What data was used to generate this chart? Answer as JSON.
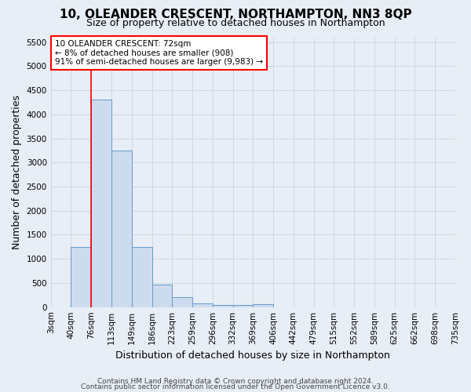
{
  "title": "10, OLEANDER CRESCENT, NORTHAMPTON, NN3 8QP",
  "subtitle": "Size of property relative to detached houses in Northampton",
  "xlabel": "Distribution of detached houses by size in Northampton",
  "ylabel": "Number of detached properties",
  "footer1": "Contains HM Land Registry data © Crown copyright and database right 2024.",
  "footer2": "Contains public sector information licensed under the Open Government Licence v3.0.",
  "bin_labels": [
    "3sqm",
    "40sqm",
    "76sqm",
    "113sqm",
    "149sqm",
    "186sqm",
    "223sqm",
    "259sqm",
    "296sqm",
    "332sqm",
    "369sqm",
    "406sqm",
    "442sqm",
    "479sqm",
    "515sqm",
    "552sqm",
    "589sqm",
    "625sqm",
    "662sqm",
    "698sqm",
    "735sqm"
  ],
  "bar_values": [
    0,
    1250,
    4300,
    3250,
    1250,
    460,
    200,
    80,
    50,
    50,
    60,
    0,
    0,
    0,
    0,
    0,
    0,
    0,
    0,
    0
  ],
  "bar_color": "#ccdcee",
  "bar_edge_color": "#6699cc",
  "red_line_index": 2,
  "ylim": [
    0,
    5600
  ],
  "yticks": [
    0,
    500,
    1000,
    1500,
    2000,
    2500,
    3000,
    3500,
    4000,
    4500,
    5000,
    5500
  ],
  "annotation_text": "10 OLEANDER CRESCENT: 72sqm\n← 8% of detached houses are smaller (908)\n91% of semi-detached houses are larger (9,983) →",
  "background_color": "#e8eef5",
  "grid_color": "#c8d4e0",
  "title_fontsize": 11,
  "subtitle_fontsize": 9,
  "axis_label_fontsize": 9,
  "tick_fontsize": 7.5,
  "footer_fontsize": 6.5,
  "ann_fontsize": 7.5
}
